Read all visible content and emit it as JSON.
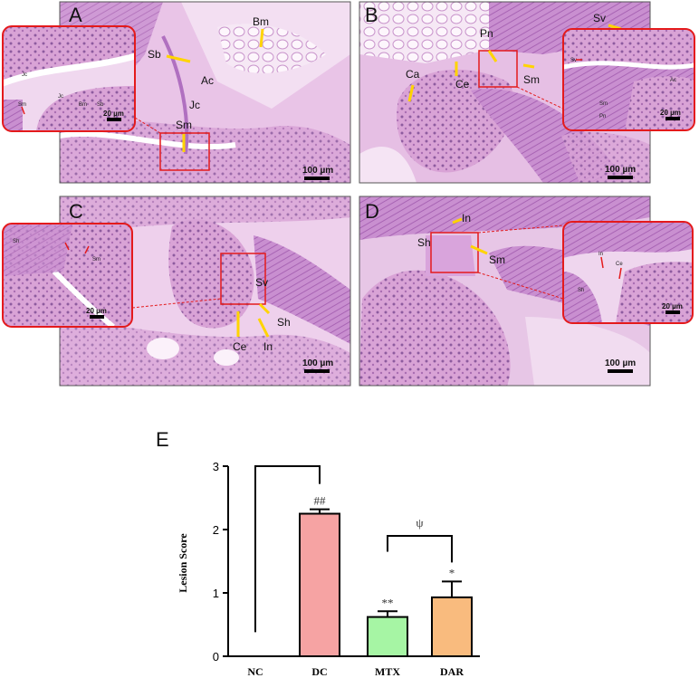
{
  "panels": [
    {
      "letter": "A",
      "labels": [
        "Bm",
        "Sb",
        "Ac",
        "Jc",
        "Sm"
      ],
      "inset_labels": [
        "Jc",
        "Sm",
        "Bm",
        "Sb",
        "Jc"
      ],
      "scale": "100 µm",
      "inset_scale": "20 µm"
    },
    {
      "letter": "B",
      "labels": [
        "Sv",
        "Pn",
        "Ca",
        "Ce",
        "Sm"
      ],
      "inset_labels": [
        "Sv",
        "Ac",
        "Sm",
        "Pn"
      ],
      "scale": "100 µm",
      "inset_scale": "20 µm"
    },
    {
      "letter": "C",
      "labels": [
        "Sv",
        "Sh",
        "Ce",
        "In"
      ],
      "inset_labels": [
        "Sh",
        "Sm"
      ],
      "scale": "100 µm",
      "inset_scale": "20 µm"
    },
    {
      "letter": "D",
      "labels": [
        "In",
        "Sh",
        "Sm"
      ],
      "inset_labels": [
        "In",
        "Ce",
        "Sh"
      ],
      "scale": "100 µm",
      "inset_scale": "20 µm"
    }
  ],
  "chart_panel_letter": "E",
  "chart_data": {
    "type": "bar",
    "categories": [
      "NC",
      "DC",
      "MTX",
      "DAR"
    ],
    "values": [
      0,
      2.25,
      0.62,
      0.93
    ],
    "errors": [
      0,
      0.07,
      0.09,
      0.25
    ],
    "bar_colors": [
      "#ffffff",
      "#f6a3a3",
      "#a6f5a4",
      "#f9bb7e"
    ],
    "ylabel": "Lesion Score",
    "ylim": [
      0,
      3
    ],
    "yticks": [
      0,
      1,
      2,
      3
    ],
    "significance": [
      {
        "category": "DC",
        "label": "##"
      },
      {
        "category": "MTX",
        "label": "**"
      },
      {
        "category": "DAR",
        "label": "*"
      }
    ],
    "brackets": [
      {
        "from": "NC",
        "to": "DC",
        "label": ""
      },
      {
        "from": "MTX",
        "to": "DAR",
        "label": "ψ"
      }
    ]
  }
}
